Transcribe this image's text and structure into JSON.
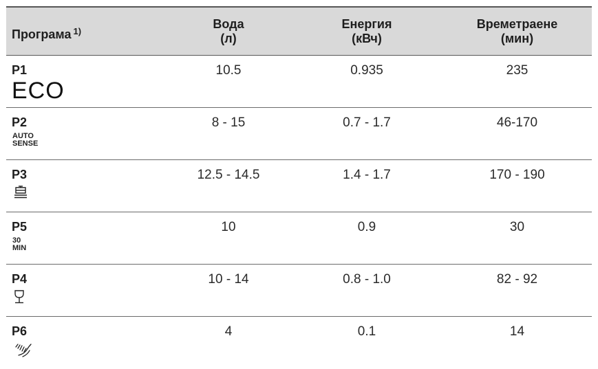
{
  "headers": {
    "program": "Програма",
    "program_note": "1)",
    "water_line1": "Вода",
    "water_line2": "(л)",
    "energy_line1": "Енергия",
    "energy_line2": "(кВч)",
    "duration_line1": "Времетраене",
    "duration_line2": "(мин)"
  },
  "rows": [
    {
      "program": "P1",
      "symbol_text": "ECO",
      "water": "10.5",
      "energy": "0.935",
      "duration": "235"
    },
    {
      "program": "P2",
      "symbol_line1": "AUTO",
      "symbol_line2": "SENSE",
      "water": "8 - 15",
      "energy": "0.7 - 1.7",
      "duration": "46-170"
    },
    {
      "program": "P3",
      "icon": "pot-icon",
      "water": "12.5 - 14.5",
      "energy": "1.4 - 1.7",
      "duration": "170 - 190"
    },
    {
      "program": "P5",
      "symbol_line1": "30",
      "symbol_line2": "MIN",
      "water": "10",
      "energy": "0.9",
      "duration": "30"
    },
    {
      "program": "P4",
      "icon": "wine-glass-icon",
      "water": "10 - 14",
      "energy": "0.8 - 1.0",
      "duration": "82 - 92"
    },
    {
      "program": "P6",
      "icon": "rinse-spray-icon",
      "water": "4",
      "energy": "0.1",
      "duration": "14"
    }
  ]
}
